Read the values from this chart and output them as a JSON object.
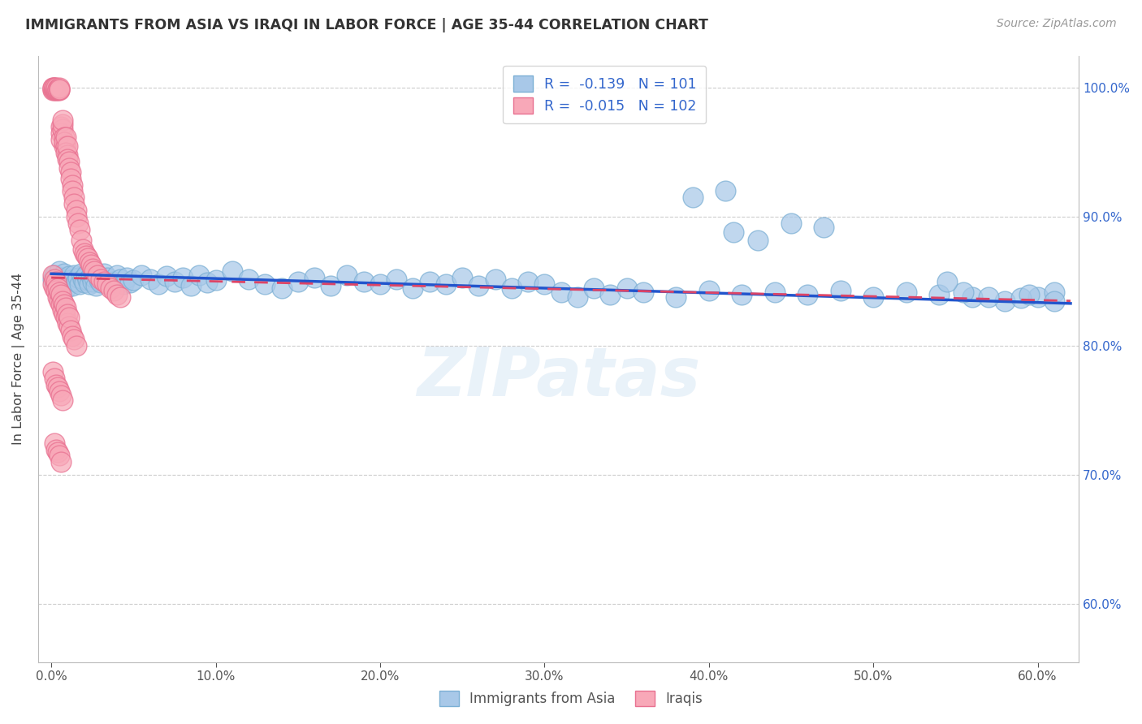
{
  "title": "IMMIGRANTS FROM ASIA VS IRAQI IN LABOR FORCE | AGE 35-44 CORRELATION CHART",
  "source": "Source: ZipAtlas.com",
  "ylabel": "In Labor Force | Age 35-44",
  "x_ticks": [
    0.0,
    0.1,
    0.2,
    0.3,
    0.4,
    0.5,
    0.6
  ],
  "x_tick_labels": [
    "0.0%",
    "10.0%",
    "20.0%",
    "30.0%",
    "40.0%",
    "50.0%",
    "60.0%"
  ],
  "y_ticks": [
    0.6,
    0.7,
    0.8,
    0.9,
    1.0
  ],
  "y_tick_labels": [
    "60.0%",
    "70.0%",
    "80.0%",
    "90.0%",
    "100.0%"
  ],
  "ylim": [
    0.555,
    1.025
  ],
  "xlim": [
    -0.008,
    0.625
  ],
  "blue_color": "#A8C8E8",
  "pink_color": "#F8A8B8",
  "blue_edge": "#7BAFD4",
  "pink_edge": "#E87090",
  "trend_blue": "#2255CC",
  "trend_pink": "#DD4466",
  "legend_R_blue": "-0.139",
  "legend_N_blue": "101",
  "legend_R_pink": "-0.015",
  "legend_N_pink": "102",
  "legend_text_color": "#3366CC",
  "title_color": "#333333",
  "axis_label_color": "#444444",
  "tick_color_right": "#3366CC",
  "tick_color_bottom": "#555555",
  "grid_color": "#CCCCCC",
  "background_color": "#FFFFFF",
  "blue_scatter_x": [
    0.001,
    0.002,
    0.003,
    0.004,
    0.005,
    0.006,
    0.007,
    0.008,
    0.009,
    0.01,
    0.011,
    0.012,
    0.013,
    0.014,
    0.015,
    0.016,
    0.017,
    0.018,
    0.019,
    0.02,
    0.021,
    0.022,
    0.023,
    0.024,
    0.025,
    0.026,
    0.027,
    0.028,
    0.029,
    0.03,
    0.032,
    0.034,
    0.036,
    0.038,
    0.04,
    0.042,
    0.044,
    0.046,
    0.048,
    0.05,
    0.055,
    0.06,
    0.065,
    0.07,
    0.075,
    0.08,
    0.085,
    0.09,
    0.095,
    0.1,
    0.11,
    0.12,
    0.13,
    0.14,
    0.15,
    0.16,
    0.17,
    0.18,
    0.19,
    0.2,
    0.21,
    0.22,
    0.23,
    0.24,
    0.25,
    0.26,
    0.27,
    0.28,
    0.29,
    0.3,
    0.31,
    0.32,
    0.33,
    0.34,
    0.35,
    0.36,
    0.38,
    0.4,
    0.42,
    0.44,
    0.46,
    0.48,
    0.5,
    0.52,
    0.54,
    0.56,
    0.58,
    0.6,
    0.61,
    0.59,
    0.45,
    0.47,
    0.41,
    0.39,
    0.415,
    0.43,
    0.61,
    0.595,
    0.57,
    0.555,
    0.545
  ],
  "blue_scatter_y": [
    0.852,
    0.855,
    0.85,
    0.848,
    0.858,
    0.853,
    0.849,
    0.856,
    0.845,
    0.852,
    0.854,
    0.851,
    0.847,
    0.855,
    0.85,
    0.853,
    0.848,
    0.856,
    0.852,
    0.849,
    0.855,
    0.851,
    0.848,
    0.854,
    0.85,
    0.853,
    0.847,
    0.855,
    0.851,
    0.849,
    0.856,
    0.853,
    0.848,
    0.85,
    0.855,
    0.852,
    0.848,
    0.853,
    0.849,
    0.851,
    0.855,
    0.852,
    0.848,
    0.854,
    0.85,
    0.853,
    0.847,
    0.855,
    0.849,
    0.851,
    0.858,
    0.852,
    0.848,
    0.845,
    0.85,
    0.853,
    0.847,
    0.855,
    0.85,
    0.848,
    0.852,
    0.845,
    0.85,
    0.848,
    0.853,
    0.847,
    0.852,
    0.845,
    0.85,
    0.848,
    0.842,
    0.838,
    0.845,
    0.84,
    0.845,
    0.842,
    0.838,
    0.843,
    0.84,
    0.842,
    0.84,
    0.843,
    0.838,
    0.842,
    0.84,
    0.838,
    0.835,
    0.838,
    0.842,
    0.837,
    0.895,
    0.892,
    0.92,
    0.915,
    0.888,
    0.882,
    0.835,
    0.84,
    0.838,
    0.842,
    0.85
  ],
  "pink_scatter_x": [
    0.001,
    0.001,
    0.001,
    0.001,
    0.002,
    0.002,
    0.002,
    0.002,
    0.002,
    0.003,
    0.003,
    0.003,
    0.003,
    0.004,
    0.004,
    0.004,
    0.005,
    0.005,
    0.005,
    0.005,
    0.006,
    0.006,
    0.006,
    0.007,
    0.007,
    0.007,
    0.008,
    0.008,
    0.008,
    0.009,
    0.009,
    0.009,
    0.01,
    0.01,
    0.01,
    0.011,
    0.011,
    0.012,
    0.012,
    0.013,
    0.013,
    0.014,
    0.014,
    0.015,
    0.015,
    0.016,
    0.017,
    0.018,
    0.019,
    0.02,
    0.021,
    0.022,
    0.023,
    0.024,
    0.025,
    0.026,
    0.028,
    0.03,
    0.032,
    0.034,
    0.036,
    0.038,
    0.04,
    0.042,
    0.001,
    0.001,
    0.002,
    0.002,
    0.003,
    0.003,
    0.004,
    0.004,
    0.005,
    0.005,
    0.006,
    0.006,
    0.007,
    0.007,
    0.008,
    0.008,
    0.009,
    0.009,
    0.01,
    0.01,
    0.011,
    0.011,
    0.012,
    0.013,
    0.014,
    0.015,
    0.001,
    0.002,
    0.003,
    0.004,
    0.005,
    0.006,
    0.007,
    0.002,
    0.003,
    0.004,
    0.005,
    0.006
  ],
  "pink_scatter_y": [
    1.0,
    0.999,
    0.998,
    1.0,
    0.999,
    1.0,
    0.998,
    0.999,
    1.0,
    0.999,
    0.998,
    0.999,
    1.0,
    0.999,
    0.998,
    0.999,
    0.998,
    0.999,
    1.0,
    0.999,
    0.97,
    0.965,
    0.96,
    0.968,
    0.972,
    0.975,
    0.955,
    0.962,
    0.958,
    0.955,
    0.962,
    0.95,
    0.948,
    0.955,
    0.945,
    0.943,
    0.938,
    0.935,
    0.93,
    0.925,
    0.92,
    0.915,
    0.91,
    0.905,
    0.9,
    0.895,
    0.89,
    0.882,
    0.875,
    0.872,
    0.87,
    0.868,
    0.865,
    0.863,
    0.86,
    0.858,
    0.855,
    0.852,
    0.85,
    0.848,
    0.845,
    0.843,
    0.84,
    0.838,
    0.855,
    0.848,
    0.852,
    0.845,
    0.85,
    0.843,
    0.838,
    0.845,
    0.835,
    0.842,
    0.832,
    0.84,
    0.828,
    0.835,
    0.825,
    0.832,
    0.822,
    0.83,
    0.818,
    0.825,
    0.815,
    0.822,
    0.812,
    0.808,
    0.805,
    0.8,
    0.78,
    0.775,
    0.77,
    0.768,
    0.765,
    0.762,
    0.758,
    0.725,
    0.72,
    0.718,
    0.715,
    0.71
  ]
}
